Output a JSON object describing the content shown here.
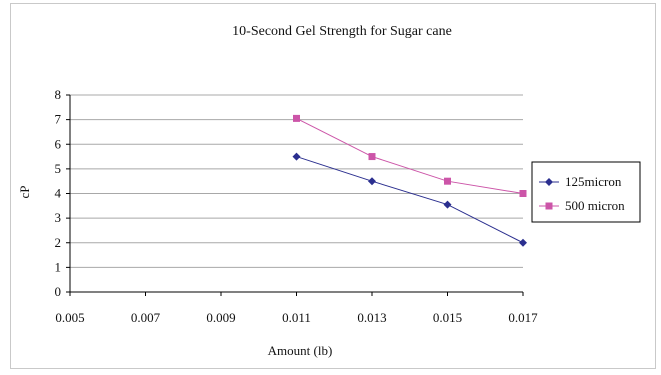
{
  "chart_data": {
    "type": "line",
    "title": "10-Second Gel Strength for Sugar cane",
    "xlabel": "Amount (lb)",
    "ylabel": "cP",
    "xlim": [
      0.005,
      0.017
    ],
    "ylim": [
      0,
      8
    ],
    "x_ticks": [
      "0.005",
      "0.007",
      "0.009",
      "0.011",
      "0.013",
      "0.015",
      "0.017"
    ],
    "y_ticks": [
      "0",
      "1",
      "2",
      "3",
      "4",
      "5",
      "6",
      "7",
      "8"
    ],
    "grid": "horizontal",
    "legend_position": "right",
    "series": [
      {
        "name": "125micron",
        "color": "#2b2f8f",
        "marker": "diamond",
        "x": [
          0.011,
          0.013,
          0.015,
          0.017
        ],
        "y": [
          5.5,
          4.5,
          3.55,
          2.0
        ]
      },
      {
        "name": "500 micron",
        "color": "#cc55a8",
        "marker": "square",
        "x": [
          0.011,
          0.013,
          0.015,
          0.017
        ],
        "y": [
          7.05,
          5.5,
          4.5,
          4.0
        ]
      }
    ]
  }
}
